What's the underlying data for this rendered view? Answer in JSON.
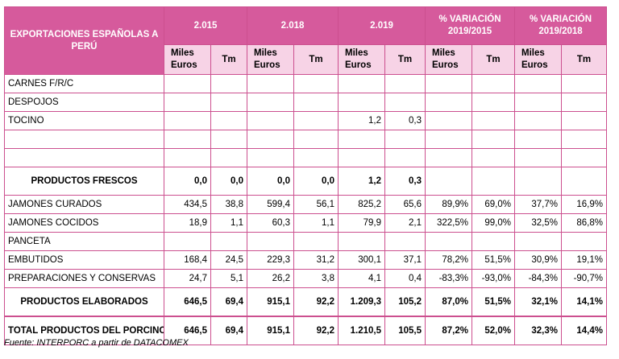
{
  "header": {
    "title": "EXPORTACIONES ESPAÑOLAS A PERÚ",
    "years": [
      "2.015",
      "2.018",
      "2.019"
    ],
    "variations": [
      "% VARIACIÓN 2019/2015",
      "% VARIACIÓN 2019/2018"
    ],
    "sub_miles": "Miles Euros",
    "sub_tm": "Tm"
  },
  "rows": [
    {
      "label": "CARNES F/R/C",
      "values": [
        "",
        "",
        "",
        "",
        "",
        "",
        "",
        "",
        "",
        ""
      ]
    },
    {
      "label": "DESPOJOS",
      "values": [
        "",
        "",
        "",
        "",
        "",
        "",
        "",
        "",
        "",
        ""
      ]
    },
    {
      "label": "TOCINO",
      "values": [
        "",
        "",
        "",
        "",
        "1,2",
        "0,3",
        "",
        "",
        "",
        ""
      ]
    },
    {
      "label": "",
      "values": [
        "",
        "",
        "",
        "",
        "",
        "",
        "",
        "",
        "",
        ""
      ]
    },
    {
      "label": "",
      "values": [
        "",
        "",
        "",
        "",
        "",
        "",
        "",
        "",
        "",
        ""
      ]
    }
  ],
  "frescos": {
    "label": "PRODUCTOS FRESCOS",
    "values": [
      "0,0",
      "0,0",
      "0,0",
      "0,0",
      "1,2",
      "0,3",
      "",
      "",
      "",
      ""
    ]
  },
  "rows2": [
    {
      "label": "JAMONES CURADOS",
      "values": [
        "434,5",
        "38,8",
        "599,4",
        "56,1",
        "825,2",
        "65,6",
        "89,9%",
        "69,0%",
        "37,7%",
        "16,9%"
      ]
    },
    {
      "label": "JAMONES COCIDOS",
      "values": [
        "18,9",
        "1,1",
        "60,3",
        "1,1",
        "79,9",
        "2,1",
        "322,5%",
        "99,0%",
        "32,5%",
        "86,8%"
      ]
    },
    {
      "label": "PANCETA",
      "values": [
        "",
        "",
        "",
        "",
        "",
        "",
        "",
        "",
        "",
        ""
      ]
    },
    {
      "label": "EMBUTIDOS",
      "values": [
        "168,4",
        "24,5",
        "229,3",
        "31,2",
        "300,1",
        "37,1",
        "78,2%",
        "51,5%",
        "30,9%",
        "19,1%"
      ]
    },
    {
      "label": "PREPARACIONES Y CONSERVAS",
      "values": [
        "24,7",
        "5,1",
        "26,2",
        "3,8",
        "4,1",
        "0,4",
        "-83,3%",
        "-93,0%",
        "-84,3%",
        "-90,7%"
      ]
    }
  ],
  "elaborados": {
    "label": "PRODUCTOS ELABORADOS",
    "values": [
      "646,5",
      "69,4",
      "915,1",
      "92,2",
      "1.209,3",
      "105,2",
      "87,0%",
      "51,5%",
      "32,1%",
      "14,1%"
    ]
  },
  "total": {
    "label": "TOTAL PRODUCTOS DEL PORCINO",
    "values": [
      "646,5",
      "69,4",
      "915,1",
      "92,2",
      "1.210,5",
      "105,5",
      "87,2%",
      "52,0%",
      "32,3%",
      "14,4%"
    ]
  },
  "source": "Fuente: INTERPORC a partir de DATACOMEX",
  "colors": {
    "header": "#d65a9c",
    "subheader": "#f7d3e6",
    "border": "#cc4f8f"
  }
}
